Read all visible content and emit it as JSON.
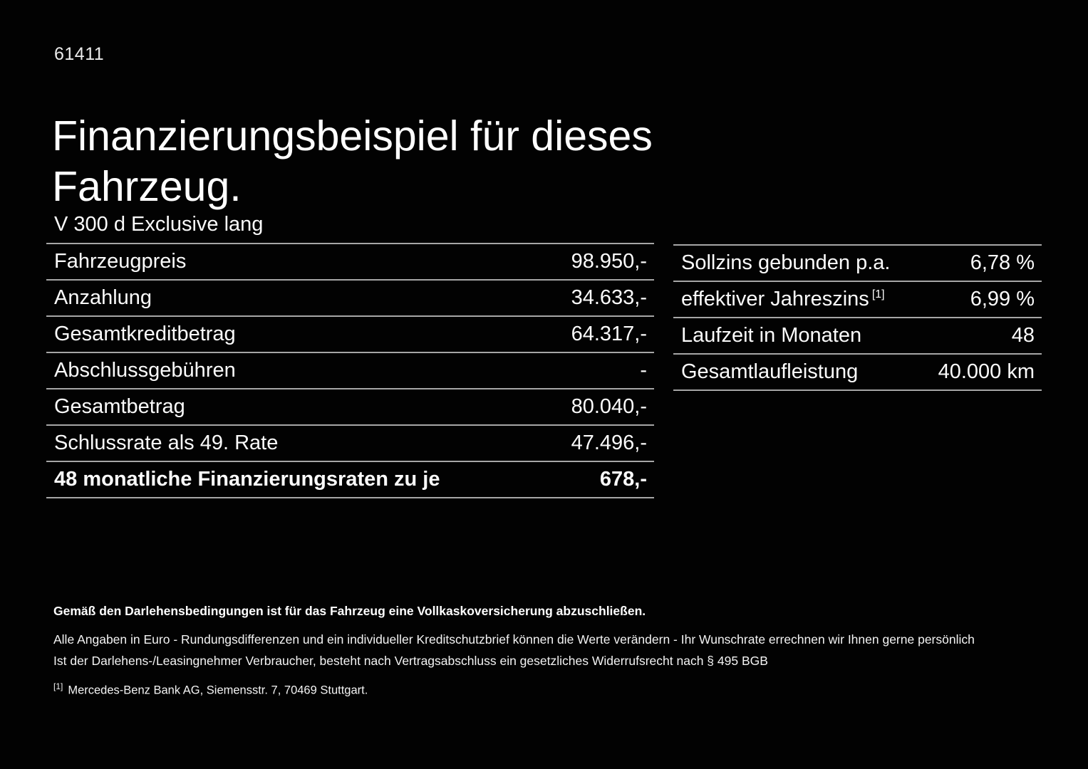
{
  "page": {
    "doc_number": "61411",
    "title": "Finanzierungsbeispiel für dieses Fahrzeug.",
    "model": "V 300 d Exclusive lang"
  },
  "finance_table": {
    "rows": [
      {
        "label": "Fahrzeugpreis",
        "value": "98.950,-"
      },
      {
        "label": "Anzahlung",
        "value": "34.633,-"
      },
      {
        "label": "Gesamtkreditbetrag",
        "value": "64.317,-"
      },
      {
        "label": "Abschlussgebühren",
        "value": "-"
      },
      {
        "label": "Gesamtbetrag",
        "value": "80.040,-"
      },
      {
        "label": "Schlussrate als 49. Rate",
        "value": "47.496,-"
      },
      {
        "label": "48 monatliche Finanzierungsraten zu je",
        "value": "678,-"
      }
    ]
  },
  "conditions_table": {
    "rows": [
      {
        "label": "Sollzins gebunden p.a.",
        "value": "6,78 %"
      },
      {
        "label": "effektiver Jahreszins",
        "footnote_marker": "[1]",
        "value": "6,99 %"
      },
      {
        "label": "Laufzeit in Monaten",
        "value": "48"
      },
      {
        "label": "Gesamtlaufleistung",
        "value": "40.000 km"
      }
    ]
  },
  "footnotes": {
    "insurance_note": "Gemäß den Darlehensbedingungen ist für das Fahrzeug eine Vollkaskoversicherung abzuschließen.",
    "euro_note": "Alle Angaben in Euro - Rundungsdifferenzen und ein individueller Kreditschutzbrief können die Werte verändern - Ihr Wunschrate errechnen wir Ihnen gerne persönlich",
    "withdrawal_note": "Ist der Darlehens-/Leasingnehmer Verbraucher, besteht nach Vertragsabschluss ein gesetzliches Widerrufsrecht nach § 495 BGB",
    "bank_marker": "[1]",
    "bank_note": "Mercedes-Benz Bank AG, Siemensstr. 7, 70469 Stuttgart."
  }
}
